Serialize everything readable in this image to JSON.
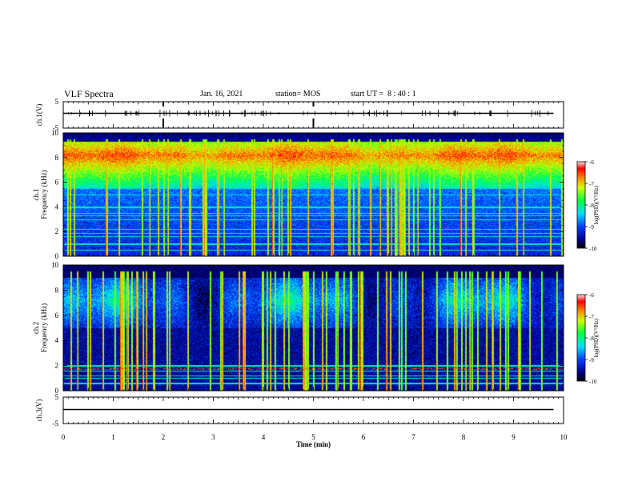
{
  "header": {
    "title": "VLF Spectra",
    "date": "Jan. 16, 2021",
    "station": "station= MOS",
    "start": "start UT =  8 : 40 : 1"
  },
  "chart_data": [
    {
      "type": "line",
      "ylabel": "ch.1(V)",
      "ylim": [
        -5,
        5
      ],
      "yticks": [
        "5",
        "-5"
      ],
      "xlim": [
        0,
        10
      ],
      "series": [
        {
          "x": [
            0,
            9.8
          ],
          "values": [
            0,
            0
          ]
        }
      ]
    },
    {
      "type": "heatmap",
      "ylabel": "ch.1 Frequency (kHz)",
      "ylim": [
        0,
        10
      ],
      "yticks": [
        "0",
        "2",
        "4",
        "6",
        "8",
        "10"
      ],
      "xlim": [
        0,
        10
      ],
      "colorbar": {
        "label": "log(PSD)(V²/Hz)",
        "ticks": [
          "-6",
          "-7",
          "-8",
          "-9",
          "-10"
        ],
        "range": [
          -10,
          -6
        ]
      }
    },
    {
      "type": "heatmap",
      "ylabel": "ch.2 Frequency (kHz)",
      "ylim": [
        0,
        10
      ],
      "yticks": [
        "0",
        "2",
        "4",
        "6",
        "8",
        "10"
      ],
      "xlim": [
        0,
        10
      ],
      "colorbar": {
        "label": "log(PSD)(V²/Hz)",
        "ticks": [
          "-6",
          "-7",
          "-8",
          "-9",
          "-10"
        ],
        "range": [
          -10,
          -6
        ]
      }
    },
    {
      "type": "line",
      "ylabel": "ch.3(V)",
      "ylim": [
        -5,
        5
      ],
      "yticks": [
        "5",
        "-5"
      ],
      "xlim": [
        0,
        10
      ],
      "xlabel": "Time (min)",
      "xticks": [
        "0",
        "1",
        "2",
        "3",
        "4",
        "5",
        "6",
        "7",
        "8",
        "9",
        "10"
      ],
      "series": [
        {
          "x": [
            0,
            9.8
          ],
          "values": [
            0,
            0
          ]
        }
      ]
    }
  ]
}
